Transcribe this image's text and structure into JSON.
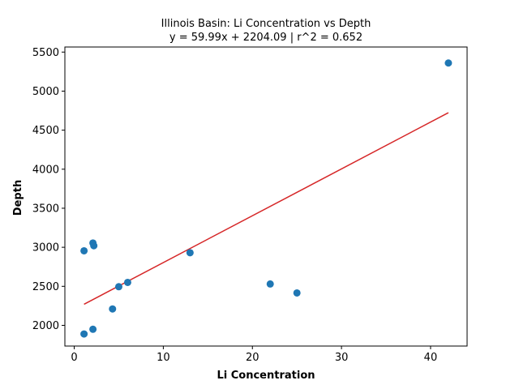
{
  "chart_data": {
    "type": "scatter",
    "title": "Illinois Basin: Li Concentration vs Depth",
    "subtitle": "y = 59.99x + 2204.09 | r^2 = 0.652",
    "xlabel": "Li Concentration",
    "ylabel": "Depth",
    "xlim": [
      -1.05,
      44.1
    ],
    "ylim": [
      1735,
      5565
    ],
    "xticks": [
      0,
      10,
      20,
      30,
      40
    ],
    "yticks": [
      2000,
      2500,
      3000,
      3500,
      4000,
      4500,
      5000,
      5500
    ],
    "grid": false,
    "colors": {
      "points": "#1f77b4",
      "fit_line": "#d62728"
    },
    "series": [
      {
        "points": [
          [
            1.1,
            1890
          ],
          [
            1.1,
            2955
          ],
          [
            2.1,
            1950
          ],
          [
            2.1,
            3055
          ],
          [
            2.2,
            3020
          ],
          [
            4.3,
            2210
          ],
          [
            5.0,
            2495
          ],
          [
            6.0,
            2550
          ],
          [
            13.0,
            2930
          ],
          [
            22.0,
            2530
          ],
          [
            25.0,
            2415
          ],
          [
            42.0,
            5360
          ]
        ]
      }
    ],
    "fit": {
      "slope": 59.99,
      "intercept": 2204.09,
      "x_range": [
        1.1,
        42.0
      ]
    }
  }
}
